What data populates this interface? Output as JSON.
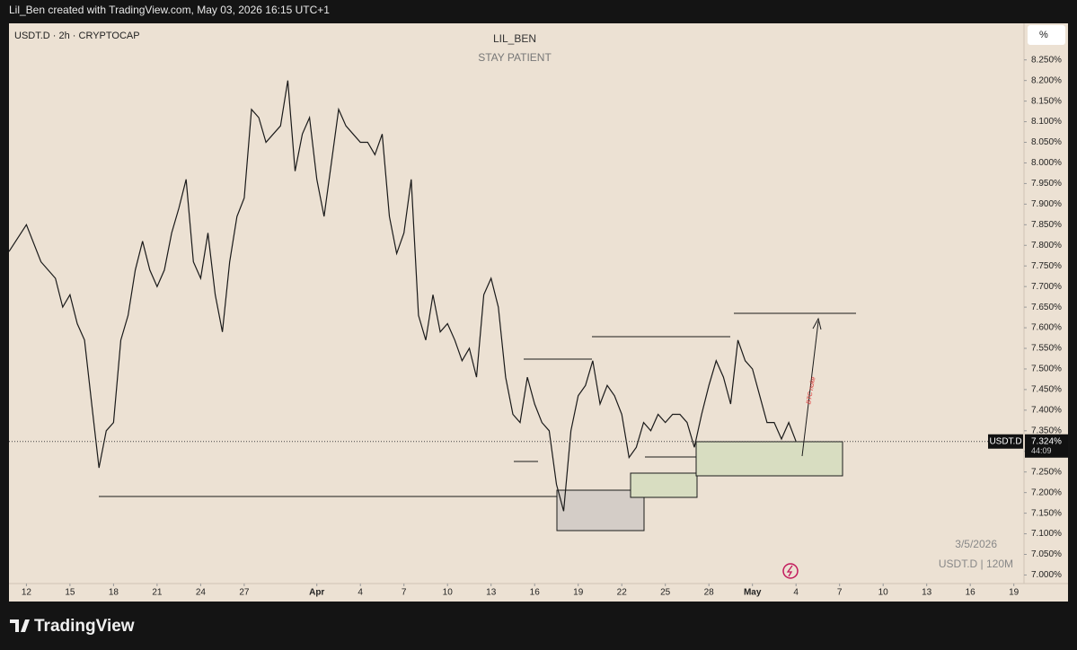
{
  "header": {
    "credit": "Lil_Ben created with TradingView.com, May 03, 2026 16:15 UTC+1"
  },
  "footer": {
    "logo": "TradingView"
  },
  "chart_data": {
    "type": "line",
    "symbol": "USDT.D · 2h · CRYPTOCAP",
    "title": "LIL_BEN",
    "subtitle": "STAY PATIENT",
    "scale_button": "%",
    "price_label": "7.324%",
    "countdown": "44:09",
    "annotations": [
      "BTC nuke",
      "3/5/2026",
      "USDT.D | 120M"
    ],
    "x": [
      10.8,
      12,
      13,
      14,
      14.5,
      15,
      15.5,
      16,
      16.5,
      17,
      17.5,
      18,
      18.5,
      19,
      19.5,
      20,
      20.5,
      21,
      21.5,
      22,
      22.5,
      23,
      23.5,
      24,
      24.5,
      25,
      25.5,
      26,
      26.5,
      27,
      27.5,
      28,
      28.5,
      29,
      29.5,
      30,
      30.5,
      31,
      31.5,
      32,
      32.5,
      33,
      33.5,
      34,
      34.5,
      35,
      35.5,
      36,
      36.5,
      37,
      37.5,
      38,
      38.5,
      39,
      39.5,
      40,
      40.5,
      41,
      41.5,
      42,
      42.5,
      43,
      43.5,
      44,
      44.5,
      45,
      45.5,
      46,
      46.5,
      47,
      47.5,
      48,
      48.5,
      49,
      49.5,
      50,
      50.5,
      51,
      51.5,
      52,
      52.5,
      53,
      53.5,
      54,
      54.5,
      55,
      55.5,
      56,
      56.5,
      57,
      57.5,
      58,
      58.5,
      59,
      59.5,
      60,
      60.5,
      61,
      61.5,
      62,
      62.5,
      63,
      63.5,
      64,
      64.5,
      65
    ],
    "series": [
      {
        "name": "USDT.D",
        "color": "#1a1a1a",
        "values": [
          7.785,
          7.85,
          7.76,
          7.72,
          7.65,
          7.68,
          7.61,
          7.57,
          7.415,
          7.26,
          7.35,
          7.37,
          7.57,
          7.63,
          7.74,
          7.81,
          7.74,
          7.7,
          7.74,
          7.83,
          7.89,
          7.96,
          7.76,
          7.72,
          7.83,
          7.68,
          7.59,
          7.76,
          7.87,
          7.915,
          8.13,
          8.11,
          8.05,
          8.07,
          8.09,
          8.2,
          7.98,
          8.07,
          8.11,
          7.96,
          7.87,
          8.0,
          8.13,
          8.09,
          8.07,
          8.05,
          8.05,
          8.02,
          8.07,
          7.87,
          7.78,
          7.83,
          7.96,
          7.63,
          7.57,
          7.68,
          7.59,
          7.61,
          7.57,
          7.52,
          7.55,
          7.48,
          7.68,
          7.72,
          7.65,
          7.48,
          7.39,
          7.37,
          7.48,
          7.415,
          7.37,
          7.35,
          7.22,
          7.155,
          7.35,
          7.435,
          7.46,
          7.52,
          7.415,
          7.46,
          7.435,
          7.39,
          7.285,
          7.31,
          7.37,
          7.35,
          7.39,
          7.37,
          7.39,
          7.39,
          7.37,
          7.31,
          7.39,
          7.46,
          7.52,
          7.48,
          7.415,
          7.57,
          7.52,
          7.5,
          7.435,
          7.37,
          7.37,
          7.33,
          7.37,
          7.324
        ]
      }
    ],
    "xlim": [
      10.8,
      80.7
    ],
    "xticks": [
      12,
      15,
      18,
      21,
      24,
      27,
      {
        "value": 32,
        "label": "Apr"
      },
      {
        "value": 35,
        "label": "4"
      },
      {
        "value": 38,
        "label": "7"
      },
      {
        "value": 41,
        "label": "10"
      },
      {
        "value": 44,
        "label": "13"
      },
      {
        "value": 47,
        "label": "16"
      },
      {
        "value": 50,
        "label": "19"
      },
      {
        "value": 53,
        "label": "22"
      },
      {
        "value": 56,
        "label": "25"
      },
      {
        "value": 59,
        "label": "28"
      },
      {
        "value": 62,
        "label": "May"
      },
      {
        "value": 65,
        "label": "4"
      },
      {
        "value": 68,
        "label": "7"
      },
      {
        "value": 71,
        "label": "10"
      },
      {
        "value": 74,
        "label": "13"
      },
      {
        "value": 77,
        "label": "16"
      },
      {
        "value": 80,
        "label": "19"
      }
    ],
    "ylim": [
      6.94,
      8.33
    ],
    "yticks": [
      {
        "value": 7.0,
        "label": "7.000%"
      },
      {
        "value": 7.05,
        "label": "7.050%"
      },
      {
        "value": 7.1,
        "label": "7.100%"
      },
      {
        "value": 7.15,
        "label": "7.150%"
      },
      {
        "value": 7.2,
        "label": "7.200%"
      },
      {
        "value": 7.25,
        "label": "7.250%"
      },
      {
        "value": 7.3,
        "label": "7.300%"
      },
      {
        "value": 7.35,
        "label": "7.350%"
      },
      {
        "value": 7.4,
        "label": "7.400%"
      },
      {
        "value": 7.45,
        "label": "7.450%"
      },
      {
        "value": 7.5,
        "label": "7.500%"
      },
      {
        "value": 7.55,
        "label": "7.550%"
      },
      {
        "value": 7.6,
        "label": "7.600%"
      },
      {
        "value": 7.65,
        "label": "7.650%"
      },
      {
        "value": 7.7,
        "label": "7.700%"
      },
      {
        "value": 7.75,
        "label": "7.750%"
      },
      {
        "value": 7.8,
        "label": "7.800%"
      },
      {
        "value": 7.85,
        "label": "7.850%"
      },
      {
        "value": 7.9,
        "label": "7.900%"
      },
      {
        "value": 7.95,
        "label": "7.950%"
      },
      {
        "value": 8.0,
        "label": "8.000%"
      },
      {
        "value": 8.05,
        "label": "8.050%"
      },
      {
        "value": 8.1,
        "label": "8.100%"
      },
      {
        "value": 8.15,
        "label": "8.150%"
      },
      {
        "value": 8.2,
        "label": "8.200%"
      },
      {
        "value": 8.25,
        "label": "8.250%"
      }
    ],
    "grid": false
  }
}
